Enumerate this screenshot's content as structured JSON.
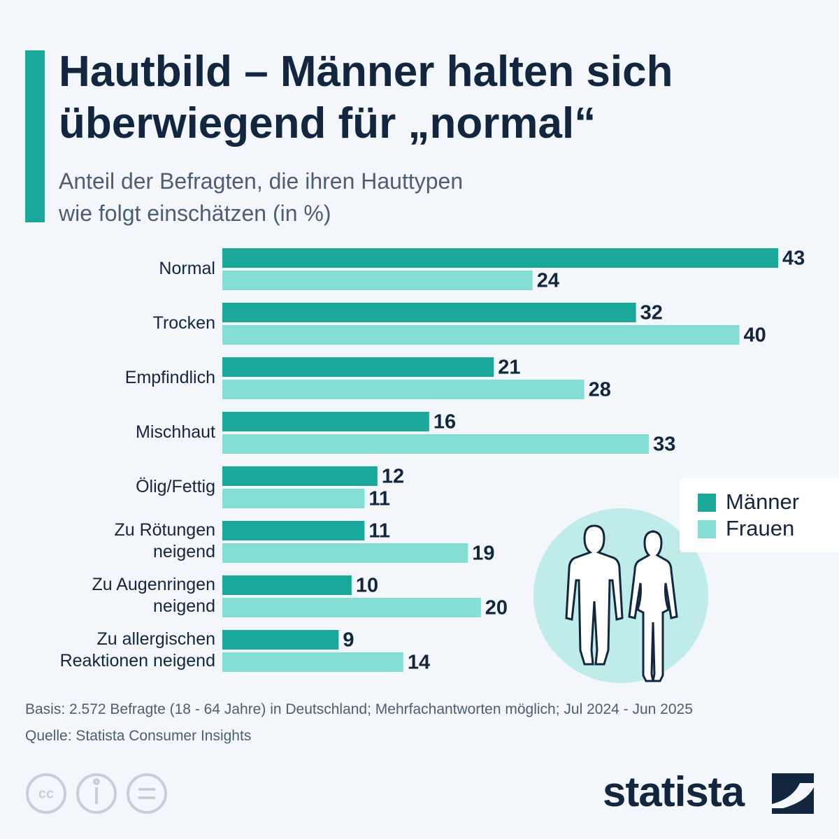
{
  "chart_data": {
    "type": "bar",
    "title": "Hautbild – Männer halten sich\nüberwiegend für „normal“",
    "subtitle": "Anteil der Befragten, die ihren Hauttypen\nwie folgt einschätzen (in %)",
    "categories": [
      "Normal",
      "Trocken",
      "Empfindlich",
      "Mischhaut",
      "Ölig/Fettig",
      "Zu Rötungen\nneigend",
      "Zu Augenringen\nneigend",
      "Zu allergischen\nReaktionen neigend"
    ],
    "series": [
      {
        "name": "Männer",
        "color": "#1aa89a",
        "values": [
          43,
          32,
          21,
          16,
          12,
          11,
          10,
          9
        ]
      },
      {
        "name": "Frauen",
        "color": "#84ded6",
        "values": [
          24,
          40,
          28,
          33,
          11,
          19,
          20,
          14
        ]
      }
    ],
    "xlim": [
      0,
      43
    ],
    "legend": "right",
    "note": "Basis: 2.572 Befragte (18 - 64 Jahre) in Deutschland; Mehrfachantworten möglich; Jul 2024 - Jun 2025",
    "source": "Quelle: Statista Consumer Insights",
    "brand": "statista"
  }
}
